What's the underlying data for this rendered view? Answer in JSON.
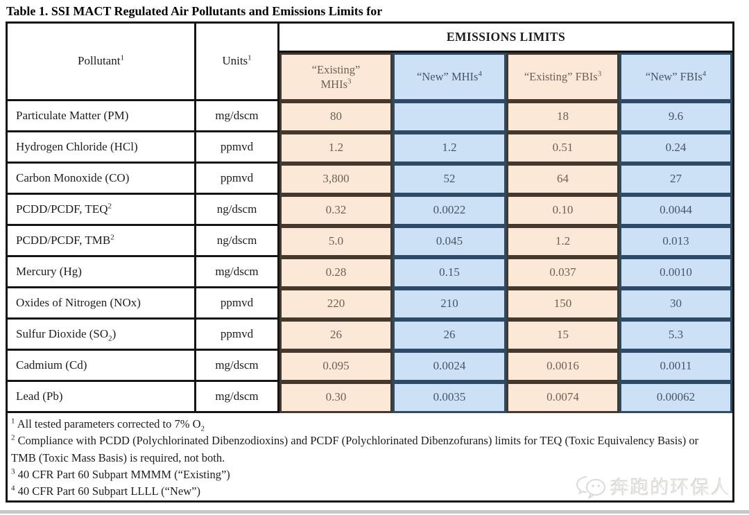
{
  "page": {
    "title": "Table 1. SSI MACT Regulated Air Pollutants and Emissions Limits for"
  },
  "table": {
    "header": {
      "pollutant": {
        "label": "Pollutant",
        "sup": "1"
      },
      "units": {
        "label": "Units",
        "sup": "1"
      },
      "emissions_limits": "EMISSIONS LIMITS",
      "limit_columns": [
        {
          "label": "“Existing” MHIs",
          "sup": "3",
          "tone": "peach",
          "two_line": true
        },
        {
          "label": "“New” MHIs",
          "sup": "4",
          "tone": "blue",
          "two_line": false
        },
        {
          "label": "“Existing” FBIs",
          "sup": "3",
          "tone": "peach",
          "two_line": false
        },
        {
          "label": "“New” FBIs",
          "sup": "4",
          "tone": "blue",
          "two_line": false
        }
      ]
    },
    "column_tones": [
      "peach",
      "blue",
      "peach",
      "blue"
    ],
    "rows": [
      {
        "pollutant": {
          "label": "Particulate Matter (PM)"
        },
        "units": "mg/dscm",
        "values": [
          "80",
          "",
          "18",
          "9.6"
        ]
      },
      {
        "pollutant": {
          "label": "Hydrogen Chloride (HCl)"
        },
        "units": "ppmvd",
        "values": [
          "1.2",
          "1.2",
          "0.51",
          "0.24"
        ]
      },
      {
        "pollutant": {
          "label": "Carbon Monoxide (CO)"
        },
        "units": "ppmvd",
        "values": [
          "3,800",
          "52",
          "64",
          "27"
        ]
      },
      {
        "pollutant": {
          "label": "PCDD/PCDF, TEQ",
          "sup": "2"
        },
        "units": "ng/dscm",
        "values": [
          "0.32",
          "0.0022",
          "0.10",
          "0.0044"
        ]
      },
      {
        "pollutant": {
          "label": "PCDD/PCDF, TMB",
          "sup": "2"
        },
        "units": "ng/dscm",
        "values": [
          "5.0",
          "0.045",
          "1.2",
          "0.013"
        ]
      },
      {
        "pollutant": {
          "label": "Mercury (Hg)"
        },
        "units": "mg/dscm",
        "values": [
          "0.28",
          "0.15",
          "0.037",
          "0.0010"
        ]
      },
      {
        "pollutant": {
          "label": "Oxides of Nitrogen (NOx)"
        },
        "units": "ppmvd",
        "values": [
          "220",
          "210",
          "150",
          "30"
        ]
      },
      {
        "pollutant": {
          "label": "Sulfur Dioxide (SO",
          "sub": "2",
          "tail": ")"
        },
        "units": "ppmvd",
        "values": [
          "26",
          "26",
          "15",
          "5.3"
        ]
      },
      {
        "pollutant": {
          "label": "Cadmium (Cd)"
        },
        "units": "mg/dscm",
        "values": [
          "0.095",
          "0.0024",
          "0.0016",
          "0.0011"
        ]
      },
      {
        "pollutant": {
          "label": "Lead (Pb)"
        },
        "units": "mg/dscm",
        "values": [
          "0.30",
          "0.0035",
          "0.0074",
          "0.00062"
        ]
      }
    ],
    "footnotes": [
      {
        "sup": "1",
        "text": "All tested parameters corrected to 7% O",
        "sub": "2"
      },
      {
        "sup": "2",
        "text": "Compliance with PCDD (Polychlorinated Dibenzodioxins) and PCDF (Polychlorinated Dibenzofurans) limits for TEQ (Toxic Equivalency Basis) or TMB (Toxic Mass Basis) is required, not both."
      },
      {
        "sup": "3",
        "text": "40 CFR Part 60 Subpart MMMM (“Existing”)"
      },
      {
        "sup": "4",
        "text": "40 CFR Part 60 Subpart LLLL (“New”)"
      }
    ]
  },
  "watermark": {
    "text": "奔跑的环保人",
    "icon": "speech-bubbles-icon"
  },
  "colors": {
    "peach_fill": "#fbe8d7",
    "blue_fill": "#cde1f6",
    "peach_border": "#45382d",
    "blue_border": "#2d4a66",
    "table_border": "#141414",
    "peach_text": "#6f6057",
    "blue_text": "#475563"
  }
}
